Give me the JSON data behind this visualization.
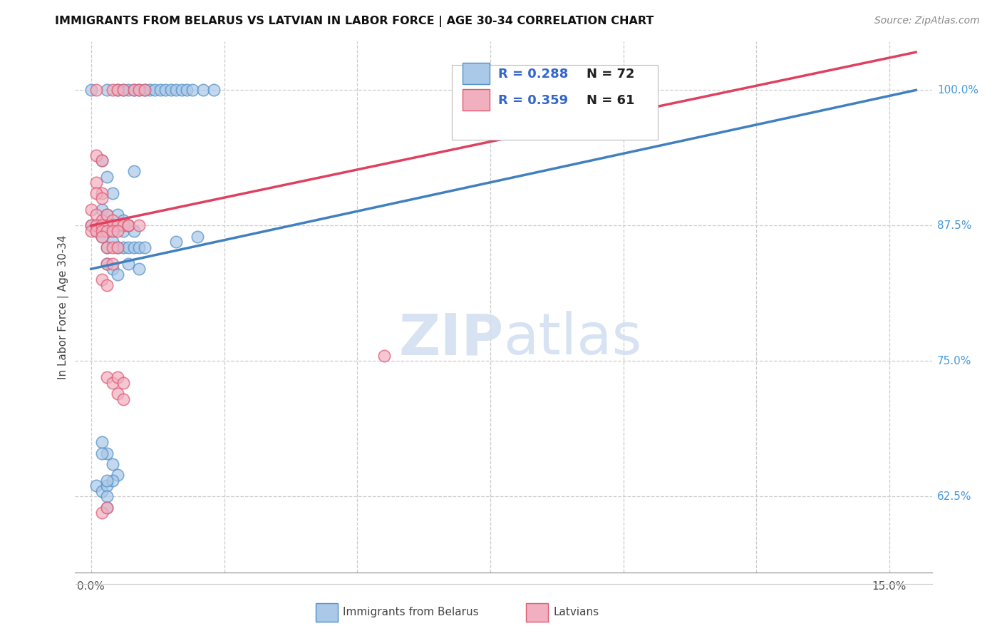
{
  "title": "IMMIGRANTS FROM BELARUS VS LATVIAN IN LABOR FORCE | AGE 30-34 CORRELATION CHART",
  "source": "Source: ZipAtlas.com",
  "ylabel": "In Labor Force | Age 30-34",
  "y_min": 0.555,
  "y_max": 1.045,
  "x_min": -0.003,
  "x_max": 0.158,
  "legend_blue_R": "R = 0.288",
  "legend_blue_N": "N = 72",
  "legend_pink_R": "R = 0.359",
  "legend_pink_N": "N = 61",
  "blue_fill": "#aac8e8",
  "pink_fill": "#f0b0c0",
  "blue_edge": "#5090c8",
  "pink_edge": "#e05870",
  "blue_line": "#4080c0",
  "pink_line": "#e04060",
  "legend_R_color": "#3366cc",
  "legend_N_color": "#222222",
  "right_axis_color": "#4499dd",
  "watermark_color": "#d0dff0",
  "blue_scatter": [
    [
      0.0,
      1.0
    ],
    [
      0.003,
      1.0
    ],
    [
      0.005,
      1.0
    ],
    [
      0.006,
      1.0
    ],
    [
      0.007,
      1.0
    ],
    [
      0.008,
      1.0
    ],
    [
      0.009,
      1.0
    ],
    [
      0.01,
      1.0
    ],
    [
      0.011,
      1.0
    ],
    [
      0.012,
      1.0
    ],
    [
      0.013,
      1.0
    ],
    [
      0.014,
      1.0
    ],
    [
      0.015,
      1.0
    ],
    [
      0.016,
      1.0
    ],
    [
      0.017,
      1.0
    ],
    [
      0.018,
      1.0
    ],
    [
      0.019,
      1.0
    ],
    [
      0.021,
      1.0
    ],
    [
      0.023,
      1.0
    ],
    [
      0.002,
      0.935
    ],
    [
      0.003,
      0.92
    ],
    [
      0.004,
      0.905
    ],
    [
      0.008,
      0.925
    ],
    [
      0.002,
      0.89
    ],
    [
      0.003,
      0.885
    ],
    [
      0.004,
      0.875
    ],
    [
      0.005,
      0.885
    ],
    [
      0.006,
      0.88
    ],
    [
      0.001,
      0.875
    ],
    [
      0.0,
      0.875
    ],
    [
      0.001,
      0.87
    ],
    [
      0.002,
      0.875
    ],
    [
      0.003,
      0.875
    ],
    [
      0.004,
      0.87
    ],
    [
      0.005,
      0.875
    ],
    [
      0.006,
      0.87
    ],
    [
      0.007,
      0.875
    ],
    [
      0.008,
      0.87
    ],
    [
      0.002,
      0.865
    ],
    [
      0.003,
      0.855
    ],
    [
      0.004,
      0.86
    ],
    [
      0.005,
      0.855
    ],
    [
      0.006,
      0.855
    ],
    [
      0.007,
      0.855
    ],
    [
      0.008,
      0.855
    ],
    [
      0.009,
      0.855
    ],
    [
      0.01,
      0.855
    ],
    [
      0.003,
      0.84
    ],
    [
      0.004,
      0.835
    ],
    [
      0.005,
      0.83
    ],
    [
      0.007,
      0.84
    ],
    [
      0.009,
      0.835
    ],
    [
      0.016,
      0.86
    ],
    [
      0.02,
      0.865
    ],
    [
      0.002,
      0.675
    ],
    [
      0.003,
      0.665
    ],
    [
      0.004,
      0.655
    ],
    [
      0.005,
      0.645
    ],
    [
      0.001,
      0.635
    ],
    [
      0.002,
      0.63
    ],
    [
      0.003,
      0.635
    ],
    [
      0.004,
      0.64
    ],
    [
      0.003,
      0.625
    ],
    [
      0.003,
      0.615
    ],
    [
      0.002,
      0.665
    ],
    [
      0.003,
      0.64
    ]
  ],
  "pink_scatter": [
    [
      0.001,
      1.0
    ],
    [
      0.004,
      1.0
    ],
    [
      0.005,
      1.0
    ],
    [
      0.006,
      1.0
    ],
    [
      0.008,
      1.0
    ],
    [
      0.009,
      1.0
    ],
    [
      0.01,
      1.0
    ],
    [
      0.085,
      1.0
    ],
    [
      0.1,
      1.0
    ],
    [
      0.001,
      0.94
    ],
    [
      0.002,
      0.935
    ],
    [
      0.001,
      0.915
    ],
    [
      0.002,
      0.905
    ],
    [
      0.0,
      0.89
    ],
    [
      0.001,
      0.885
    ],
    [
      0.002,
      0.88
    ],
    [
      0.003,
      0.885
    ],
    [
      0.003,
      0.875
    ],
    [
      0.004,
      0.88
    ],
    [
      0.004,
      0.875
    ],
    [
      0.005,
      0.875
    ],
    [
      0.006,
      0.875
    ],
    [
      0.007,
      0.875
    ],
    [
      0.0,
      0.875
    ],
    [
      0.0,
      0.87
    ],
    [
      0.001,
      0.875
    ],
    [
      0.001,
      0.87
    ],
    [
      0.002,
      0.875
    ],
    [
      0.002,
      0.87
    ],
    [
      0.003,
      0.87
    ],
    [
      0.004,
      0.87
    ],
    [
      0.005,
      0.87
    ],
    [
      0.002,
      0.865
    ],
    [
      0.003,
      0.855
    ],
    [
      0.004,
      0.855
    ],
    [
      0.005,
      0.855
    ],
    [
      0.003,
      0.84
    ],
    [
      0.004,
      0.84
    ],
    [
      0.002,
      0.825
    ],
    [
      0.003,
      0.82
    ],
    [
      0.003,
      0.735
    ],
    [
      0.004,
      0.73
    ],
    [
      0.005,
      0.735
    ],
    [
      0.006,
      0.73
    ],
    [
      0.005,
      0.72
    ],
    [
      0.006,
      0.715
    ],
    [
      0.055,
      0.755
    ],
    [
      0.002,
      0.61
    ],
    [
      0.003,
      0.615
    ],
    [
      0.007,
      0.875
    ],
    [
      0.009,
      0.875
    ],
    [
      0.001,
      0.905
    ],
    [
      0.002,
      0.9
    ]
  ],
  "blue_line_x": [
    0.0,
    0.155
  ],
  "blue_line_y": [
    0.835,
    1.0
  ],
  "pink_line_x": [
    0.0,
    0.155
  ],
  "pink_line_y": [
    0.875,
    1.035
  ]
}
